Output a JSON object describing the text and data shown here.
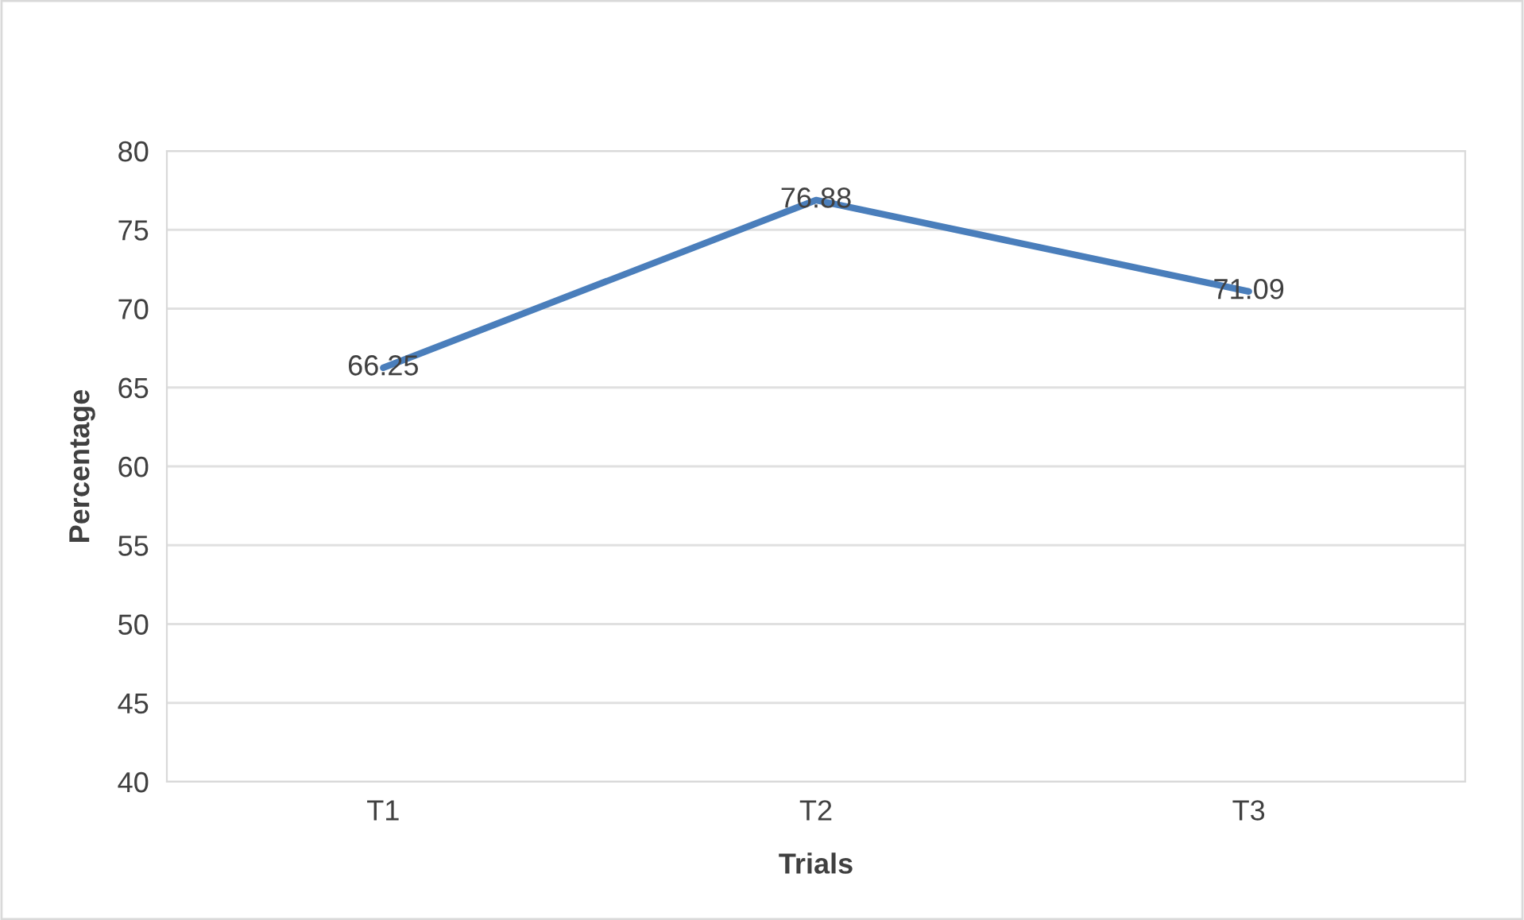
{
  "chart_data": {
    "type": "line",
    "xlabel": "Trials",
    "ylabel": "Percentage",
    "categories": [
      "T1",
      "T2",
      "T3"
    ],
    "series": [
      {
        "color": "#4a7ebb",
        "values": [
          66.25,
          76.88,
          71.09
        ]
      }
    ],
    "ylim": [
      40,
      80
    ],
    "yticks": [
      40,
      45,
      50,
      55,
      60,
      65,
      70,
      75,
      80
    ],
    "grid": "y",
    "data_labels": true,
    "marker": "none",
    "line_style": "solid"
  }
}
